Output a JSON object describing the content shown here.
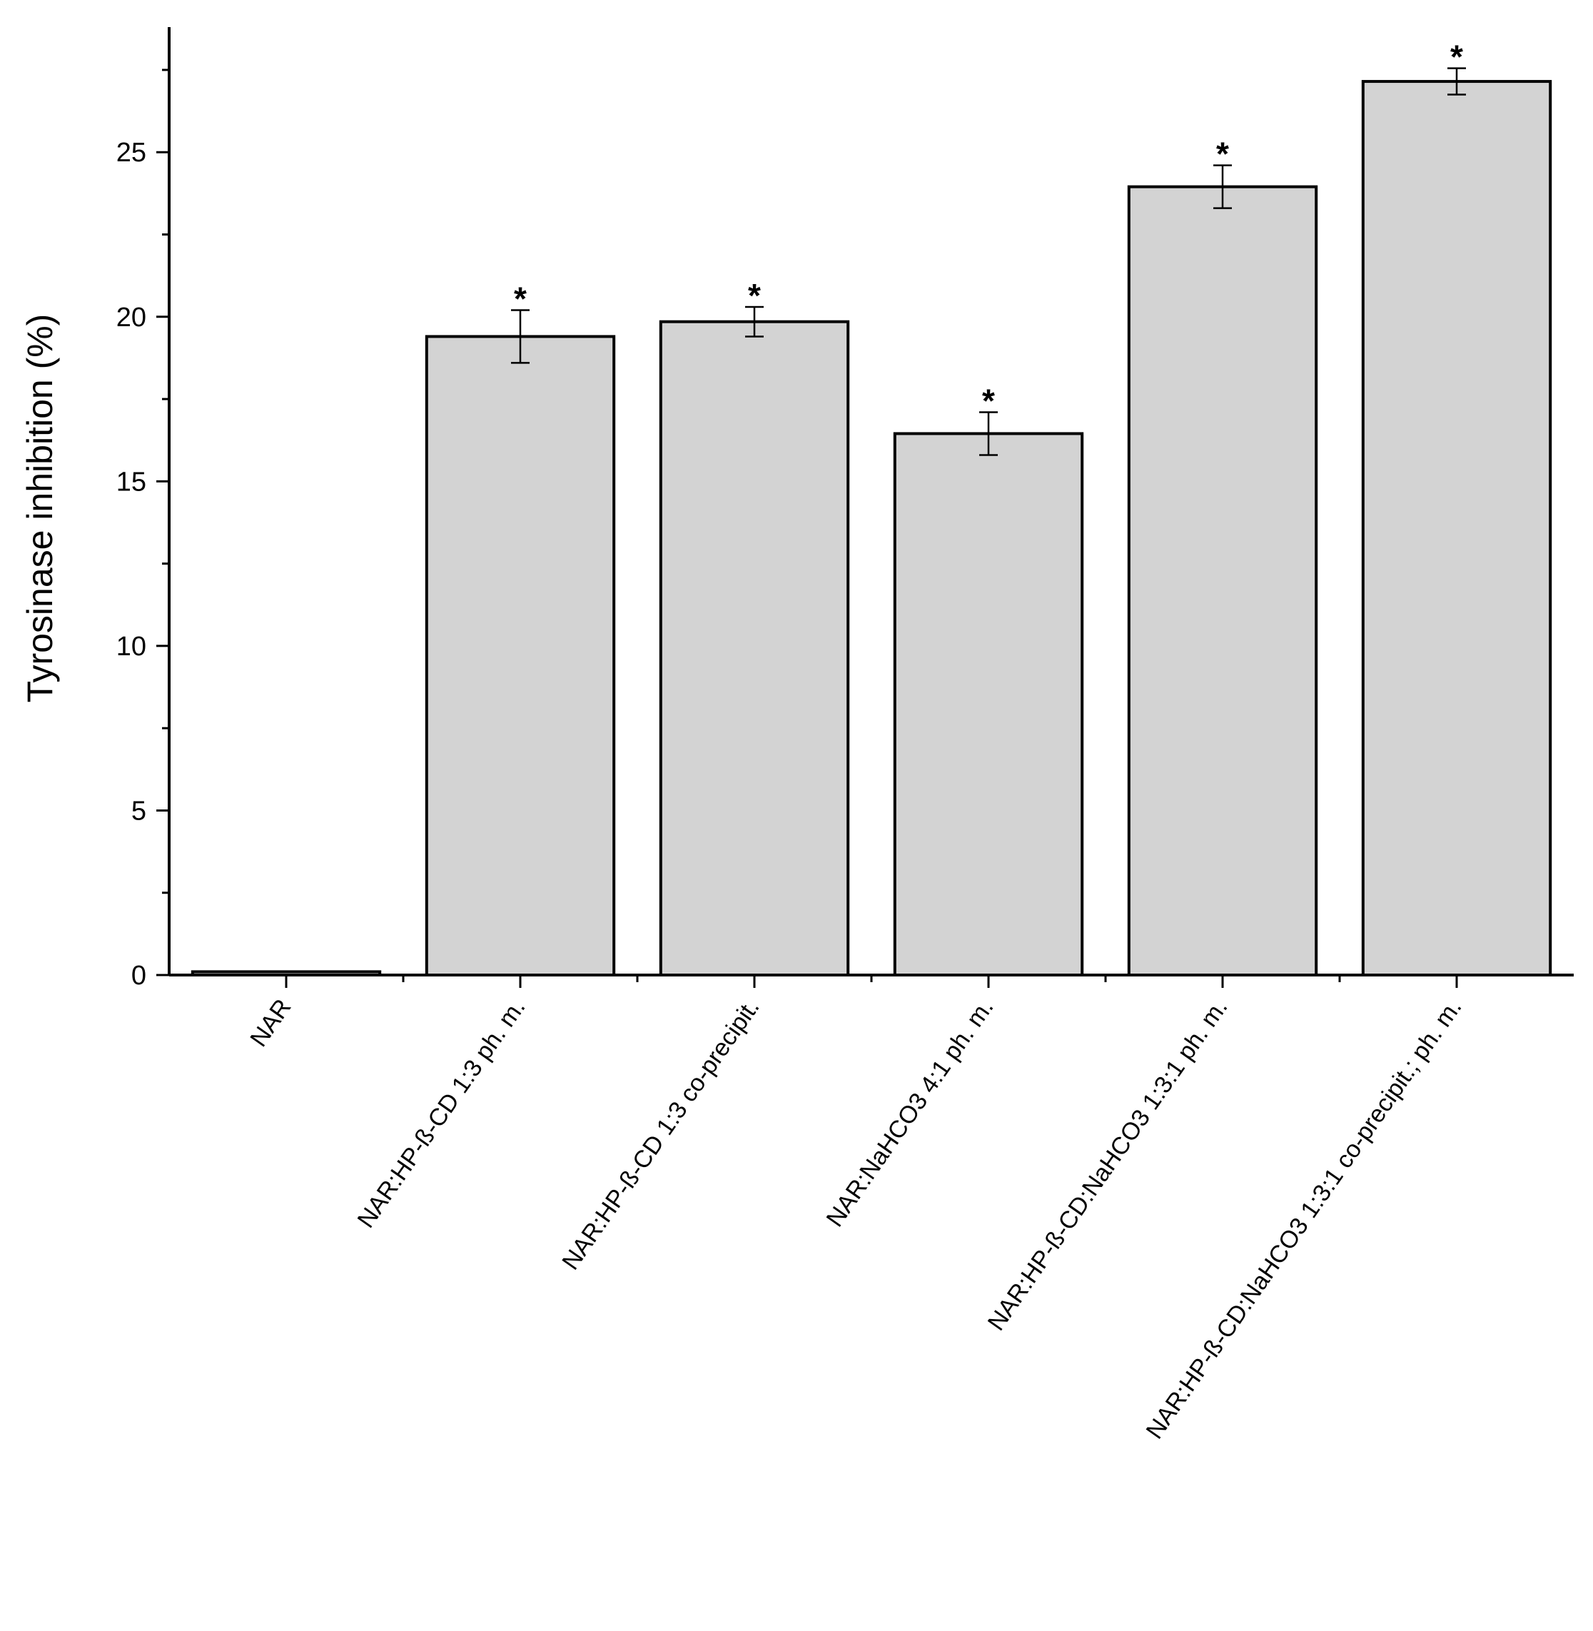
{
  "chart_data": {
    "type": "bar",
    "ylabel": "Tyrosinase inhibition (%)",
    "xlabel": "",
    "ylim": [
      0,
      28.8
    ],
    "yticks": [
      0,
      5,
      10,
      15,
      20,
      25
    ],
    "categories": [
      "NAR",
      "NAR:HP-ß-CD 1:3 ph. m.",
      "NAR:HP-ß-CD 1:3 co-precipit.",
      "NAR:NaHCO3 4:1 ph. m.",
      "NAR:HP-ß-CD:NaHCO3 1:3:1 ph. m.",
      "NAR:HP-ß-CD:NaHCO3 1:3:1 co-precipit.; ph. m."
    ],
    "values": [
      0.1,
      19.4,
      19.85,
      16.45,
      23.95,
      27.15
    ],
    "errors": [
      0,
      0.8,
      0.45,
      0.65,
      0.65,
      0.4
    ],
    "significance": [
      "",
      "*",
      "*",
      "*",
      "*",
      "*"
    ],
    "bar_color": "#d3d3d3",
    "grid": false,
    "legend": "none"
  }
}
